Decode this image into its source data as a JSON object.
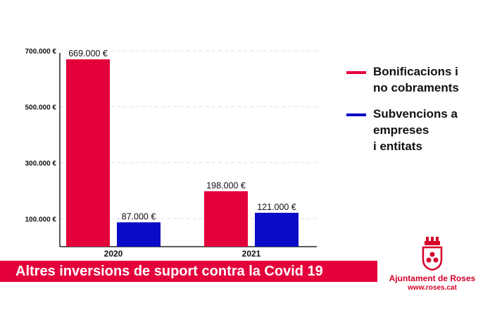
{
  "chart_data": {
    "type": "bar",
    "categories": [
      "2020",
      "2021"
    ],
    "series": [
      {
        "name": "Bonificacions i\nno cobraments",
        "values": [
          669000,
          198000
        ],
        "labels": [
          "669.000 €",
          "198.000 €"
        ],
        "color": "#e4003a"
      },
      {
        "name": "Subvencions a\nempreses\ni entitats",
        "values": [
          87000,
          121000
        ],
        "labels": [
          "87.000 €",
          "121.000 €"
        ],
        "color": "#0a0ac8"
      }
    ],
    "yticks": [
      {
        "value": 100000,
        "label": "100.000 €"
      },
      {
        "value": 300000,
        "label": "300.000 €"
      },
      {
        "value": 500000,
        "label": "500.000 €"
      },
      {
        "value": 700000,
        "label": "700.000 €"
      }
    ],
    "ylim": [
      0,
      700000
    ],
    "grid": true,
    "legend_position": "right",
    "title": "Altres inversions de suport contra la Covid 19"
  },
  "banner": {
    "text": "Altres inversions de suport contra la Covid 19",
    "color": "#e4003a"
  },
  "logo": {
    "name": "Ajuntament de Roses",
    "url": "www.roses.cat",
    "color": "#d4002a"
  }
}
